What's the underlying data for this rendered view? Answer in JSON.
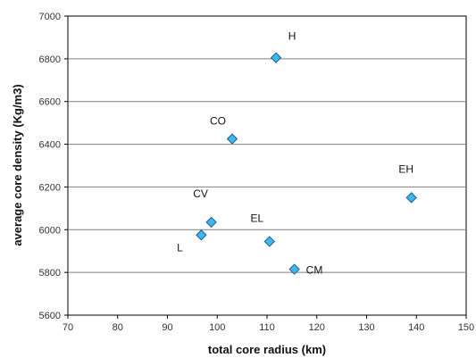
{
  "chart_data": {
    "type": "scatter",
    "title": "",
    "xlabel": "total core radius (km)",
    "ylabel": "average core density (Kg/m3)",
    "xlim": [
      70,
      150
    ],
    "ylim": [
      5600,
      7000
    ],
    "x_ticks": [
      "70",
      "80",
      "90",
      "100",
      "110",
      "120",
      "130",
      "140",
      "150"
    ],
    "y_ticks": [
      "5600",
      "5800",
      "6000",
      "6200",
      "6400",
      "6600",
      "6800",
      "7000"
    ],
    "grid": "horizontal",
    "legend": "none",
    "marker": "diamond",
    "marker_color": "#3fb6f0",
    "marker_edge_color": "#1f5f8f",
    "gridline_color": "#7f7f7f",
    "points": [
      {
        "label": "H",
        "x": 111.8,
        "y": 6805
      },
      {
        "label": "CO",
        "x": 103.0,
        "y": 6425
      },
      {
        "label": "EH",
        "x": 139.0,
        "y": 6150
      },
      {
        "label": "CV",
        "x": 98.8,
        "y": 6035
      },
      {
        "label": "L",
        "x": 96.8,
        "y": 5975
      },
      {
        "label": "EL",
        "x": 110.5,
        "y": 5945
      },
      {
        "label": "CM",
        "x": 115.5,
        "y": 5815
      }
    ]
  }
}
